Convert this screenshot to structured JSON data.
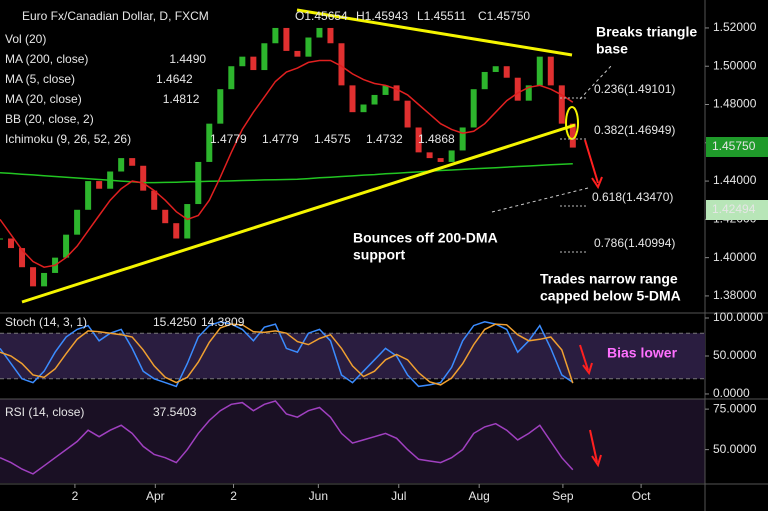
{
  "chart_data": [
    {
      "type": "candlestick",
      "title": "Euro Fx/Canadian Dollar, D, FXCM",
      "ohlc_label": [
        "O1.45654",
        "H1.45943",
        "L1.45511",
        "C1.45750"
      ],
      "x": [
        0,
        1,
        2,
        3,
        4,
        5,
        6,
        7,
        8,
        9,
        10,
        11,
        12,
        13,
        14,
        15,
        16,
        17,
        18,
        19,
        20,
        21,
        22,
        23,
        24,
        25,
        26,
        27,
        28,
        29,
        30,
        31,
        32,
        33,
        34,
        35,
        36,
        37,
        38,
        39,
        40,
        41,
        42,
        43,
        44,
        45,
        46,
        47,
        48,
        49,
        50,
        51,
        52
      ],
      "xlim": [
        0,
        64
      ],
      "xticks": [
        {
          "value": 6.8,
          "label": "2"
        },
        {
          "value": 14.1,
          "label": "Apr"
        },
        {
          "value": 21.2,
          "label": "2"
        },
        {
          "value": 28.9,
          "label": "Jun"
        },
        {
          "value": 36.2,
          "label": "Jul"
        },
        {
          "value": 43.5,
          "label": "Aug"
        },
        {
          "value": 51.1,
          "label": "Sep"
        },
        {
          "value": 58.2,
          "label": "Oct"
        }
      ],
      "ylim": [
        1.3716,
        1.5346
      ],
      "yticks": [
        {
          "value": 1.38,
          "label": "1.38000"
        },
        {
          "value": 1.4,
          "label": "1.40000"
        },
        {
          "value": 1.42,
          "label": "1.42000"
        },
        {
          "value": 1.44,
          "label": "1.44000"
        },
        {
          "value": 1.46,
          "label": "1.46000"
        },
        {
          "value": 1.48,
          "label": "1.48000"
        },
        {
          "value": 1.5,
          "label": "1.50000"
        },
        {
          "value": 1.52,
          "label": "1.52000"
        }
      ],
      "series": [
        {
          "up_color": "#2db52d",
          "down_color": "#e03030",
          "values": [
            1.41,
            1.405,
            1.395,
            1.385,
            1.392,
            1.4,
            1.412,
            1.425,
            1.44,
            1.436,
            1.445,
            1.452,
            1.448,
            1.435,
            1.425,
            1.418,
            1.41,
            1.428,
            1.45,
            1.47,
            1.488,
            1.5,
            1.505,
            1.498,
            1.512,
            1.52,
            1.508,
            1.505,
            1.515,
            1.52,
            1.512,
            1.49,
            1.476,
            1.48,
            1.485,
            1.49,
            1.482,
            1.468,
            1.455,
            1.452,
            1.45,
            1.456,
            1.468,
            1.488,
            1.497,
            1.5,
            1.494,
            1.482,
            1.49,
            1.505,
            1.49,
            1.47,
            1.4575
          ]
        },
        {
          "name": "MA (200, close)",
          "last": "1.4490",
          "color": "#22c522",
          "values": [
            1.4443,
            1.444,
            1.4436,
            1.4432,
            1.4428,
            1.4424,
            1.442,
            1.4416,
            1.4412,
            1.4408,
            1.4404,
            1.44,
            1.4396,
            1.4392,
            1.4392,
            1.4393,
            1.4394,
            1.4396,
            1.4397,
            1.4399,
            1.44,
            1.4401,
            1.4403,
            1.4404,
            1.4406,
            1.4407,
            1.4408,
            1.441,
            1.4413,
            1.4417,
            1.442,
            1.4424,
            1.4427,
            1.4431,
            1.4434,
            1.4438,
            1.4441,
            1.4445,
            1.4448,
            1.4452,
            1.4455,
            1.4458,
            1.4461,
            1.4464,
            1.4467,
            1.447,
            1.4473,
            1.4476,
            1.4479,
            1.4482,
            1.4485,
            1.4488,
            1.449
          ]
        },
        {
          "name": "MA (20, close)",
          "last": "1.4812",
          "color": "#e02020",
          "values": [
            1.42,
            1.412,
            1.404,
            1.398,
            1.395,
            1.396,
            1.4,
            1.406,
            1.414,
            1.422,
            1.43,
            1.436,
            1.44,
            1.439,
            1.435,
            1.43,
            1.424,
            1.42,
            1.422,
            1.43,
            1.442,
            1.455,
            1.467,
            1.476,
            1.484,
            1.492,
            1.497,
            1.499,
            1.502,
            1.503,
            1.503,
            1.5,
            1.496,
            1.493,
            1.491,
            1.49,
            1.488,
            1.485,
            1.48,
            1.475,
            1.47,
            1.467,
            1.465,
            1.466,
            1.47,
            1.476,
            1.482,
            1.486,
            1.489,
            1.49,
            1.488,
            1.485,
            1.4812
          ]
        }
      ],
      "indicators": [
        {
          "name": "Vol (20)"
        },
        {
          "name": "MA (5, close)",
          "last": "1.4642",
          "color": "#f0a030"
        },
        {
          "name": "BB (20, close, 2)"
        },
        {
          "name": "Ichimoku (9, 26, 52, 26)",
          "values": [
            {
              "text": "1.4779",
              "color": "#3b8cff"
            },
            {
              "text": "1.4779",
              "color": "#e02020"
            },
            {
              "text": "1.4575",
              "color": "#22c522"
            },
            {
              "text": "1.4732",
              "color": "#22c522"
            },
            {
              "text": "1.4868",
              "color": "#e02020"
            }
          ]
        }
      ],
      "price_labels": [
        {
          "text": "1.45750",
          "color": "#1f9a2a"
        },
        {
          "text": "1.42494",
          "color": "#b8e6b8"
        }
      ],
      "fib_labels": [
        "0.236(1.49101)",
        "0.382(1.46949)",
        "0.618(1.43470)",
        "0.786(1.40994)"
      ],
      "annotations": [
        [
          "Breaks triangle",
          "base"
        ],
        [
          "Bounces off 200-DMA",
          "support"
        ],
        [
          "Trades narrow range",
          "capped below 5-DMA"
        ]
      ]
    },
    {
      "type": "line",
      "legend_title": "Stoch (14, 3, 1)",
      "ylim": [
        -5.3,
        106.6
      ],
      "yticks": [
        {
          "value": 0,
          "label": "0.0000"
        },
        {
          "value": 50,
          "label": "50.0000"
        },
        {
          "value": 100,
          "label": "100.0000"
        }
      ],
      "band": [
        20,
        80
      ],
      "series": [
        {
          "last": "15.4250",
          "color": "#3b8cff",
          "values": [
            60,
            40,
            20,
            15,
            30,
            55,
            75,
            85,
            90,
            70,
            80,
            85,
            60,
            30,
            20,
            15,
            10,
            40,
            75,
            90,
            95,
            92,
            85,
            70,
            88,
            92,
            60,
            55,
            80,
            85,
            70,
            25,
            15,
            30,
            45,
            60,
            50,
            25,
            10,
            12,
            15,
            35,
            70,
            90,
            95,
            92,
            85,
            55,
            70,
            90,
            60,
            25,
            15.425
          ]
        },
        {
          "last": "14.3809",
          "color": "#f0a030",
          "values": [
            55,
            50,
            40,
            25,
            22,
            33,
            53,
            72,
            83,
            82,
            80,
            78,
            75,
            58,
            37,
            22,
            15,
            22,
            42,
            68,
            87,
            92,
            91,
            82,
            81,
            83,
            80,
            69,
            65,
            73,
            78,
            60,
            37,
            23,
            30,
            45,
            52,
            45,
            28,
            16,
            12,
            21,
            40,
            65,
            85,
            92,
            91,
            78,
            70,
            72,
            75,
            58,
            14.3809
          ]
        }
      ],
      "annotations": [
        "Bias lower"
      ]
    },
    {
      "type": "line",
      "legend_title": "RSI (14, close)",
      "ylim": [
        29.4,
        81.25
      ],
      "yticks": [
        {
          "value": 50,
          "label": "50.0000"
        },
        {
          "value": 75,
          "label": "75.0000"
        }
      ],
      "series": [
        {
          "last": "37.5403",
          "color": "#a040c0",
          "values": [
            45,
            42,
            38,
            35,
            40,
            45,
            50,
            55,
            62,
            58,
            62,
            65,
            60,
            52,
            47,
            45,
            42,
            50,
            60,
            68,
            74,
            78,
            79,
            74,
            78,
            80,
            72,
            70,
            74,
            76,
            70,
            60,
            54,
            56,
            58,
            60,
            57,
            50,
            44,
            43,
            42,
            45,
            50,
            60,
            64,
            66,
            62,
            56,
            60,
            65,
            55,
            45,
            37.5403
          ]
        }
      ]
    }
  ]
}
